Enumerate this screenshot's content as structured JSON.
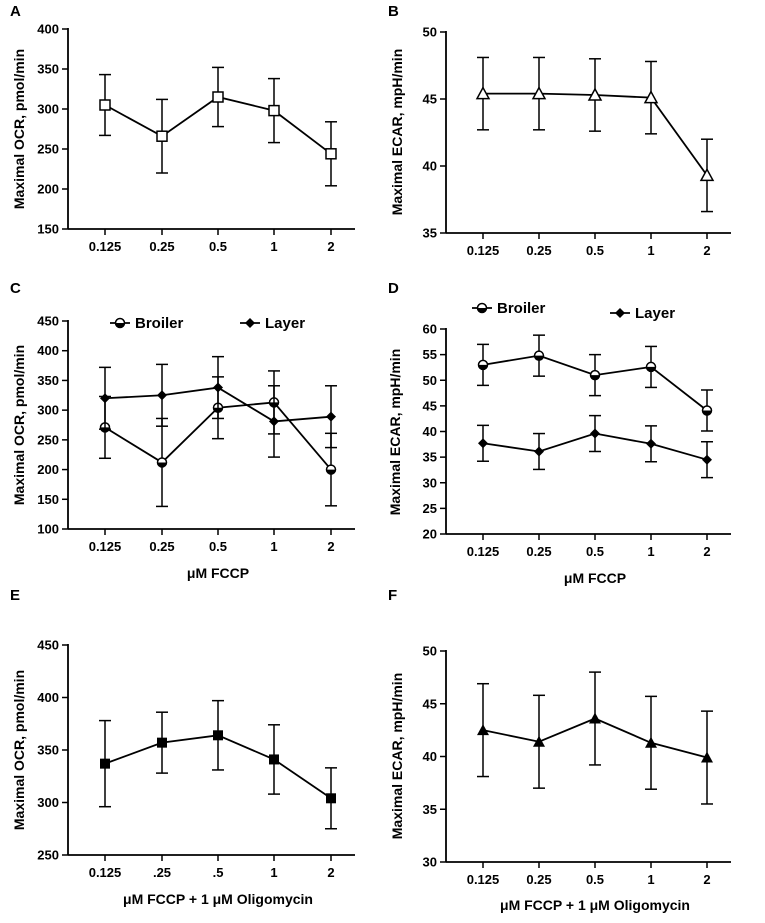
{
  "figure": {
    "panel_count": 6
  },
  "chart_data": [
    {
      "panel": "A",
      "type": "line",
      "categories": [
        "0.125",
        "0.25",
        "0.5",
        "1",
        "2"
      ],
      "series": [
        {
          "name": "",
          "marker": "square-open",
          "values": [
            305,
            266,
            315,
            298,
            244
          ],
          "errors": [
            38,
            46,
            37,
            40,
            40
          ]
        }
      ],
      "ylabel": "Maximal OCR, pmol/min",
      "xlabel": "",
      "ylim": [
        150,
        400
      ],
      "yticks": [
        150,
        200,
        250,
        300,
        350,
        400
      ]
    },
    {
      "panel": "B",
      "type": "line",
      "categories": [
        "0.125",
        "0.25",
        "0.5",
        "1",
        "2"
      ],
      "series": [
        {
          "name": "",
          "marker": "triangle-open",
          "values": [
            45.4,
            45.4,
            45.3,
            45.1,
            39.3
          ],
          "errors": [
            2.7,
            2.7,
            2.7,
            2.7,
            2.7
          ]
        }
      ],
      "ylabel": "Maximal ECAR, mpH/min",
      "xlabel": "",
      "ylim": [
        35,
        50
      ],
      "yticks": [
        35,
        40,
        45,
        50
      ]
    },
    {
      "panel": "C",
      "type": "line",
      "categories": [
        "0.125",
        "0.25",
        "0.5",
        "1",
        "2"
      ],
      "series": [
        {
          "name": "Broiler",
          "marker": "circle-half",
          "values": [
            271,
            212,
            304,
            313,
            200
          ],
          "errors": [
            52,
            74,
            52,
            53,
            61
          ]
        },
        {
          "name": "Layer",
          "marker": "diamond",
          "values": [
            320,
            325,
            338,
            281,
            289
          ],
          "errors": [
            52,
            52,
            52,
            60,
            52
          ]
        }
      ],
      "ylabel": "Maximal OCR, pmol/min",
      "xlabel": "μM FCCP",
      "ylim": [
        100,
        450
      ],
      "yticks": [
        100,
        150,
        200,
        250,
        300,
        350,
        400,
        450
      ]
    },
    {
      "panel": "D",
      "type": "line",
      "categories": [
        "0.125",
        "0.25",
        "0.5",
        "1",
        "2"
      ],
      "series": [
        {
          "name": "Broiler",
          "marker": "circle-half",
          "values": [
            53.0,
            54.8,
            51.0,
            52.6,
            44.1
          ],
          "errors": [
            4,
            4,
            4,
            4,
            4
          ]
        },
        {
          "name": "Layer",
          "marker": "diamond",
          "values": [
            37.7,
            36.1,
            39.6,
            37.6,
            34.5
          ],
          "errors": [
            3.5,
            3.5,
            3.5,
            3.5,
            3.5
          ]
        }
      ],
      "ylabel": "Maximal ECAR, mpH/min",
      "xlabel": "μM FCCP",
      "ylim": [
        20,
        60
      ],
      "yticks": [
        20,
        25,
        30,
        35,
        40,
        45,
        50,
        55,
        60
      ]
    },
    {
      "panel": "E",
      "type": "line",
      "categories": [
        "0.125",
        ".25",
        ".5",
        "1",
        "2"
      ],
      "series": [
        {
          "name": "",
          "marker": "square-filled",
          "values": [
            337,
            357,
            364,
            341,
            304
          ],
          "errors": [
            41,
            29,
            33,
            33,
            29
          ]
        }
      ],
      "ylabel": "Maximal OCR, pmol/min",
      "xlabel": "μM FCCP + 1 μM Oligomycin",
      "ylim": [
        250,
        450
      ],
      "yticks": [
        250,
        300,
        350,
        400,
        450
      ]
    },
    {
      "panel": "F",
      "type": "line",
      "categories": [
        "0.125",
        "0.25",
        "0.5",
        "1",
        "2"
      ],
      "series": [
        {
          "name": "",
          "marker": "triangle-filled",
          "values": [
            42.5,
            41.4,
            43.6,
            41.3,
            39.9
          ],
          "errors": [
            4.4,
            4.4,
            4.4,
            4.4,
            4.4
          ]
        }
      ],
      "ylabel": "Maximal ECAR, mpH/min",
      "xlabel": "μM FCCP + 1 μM Oligomycin",
      "ylim": [
        30,
        50
      ],
      "yticks": [
        30,
        35,
        40,
        45,
        50
      ]
    }
  ]
}
